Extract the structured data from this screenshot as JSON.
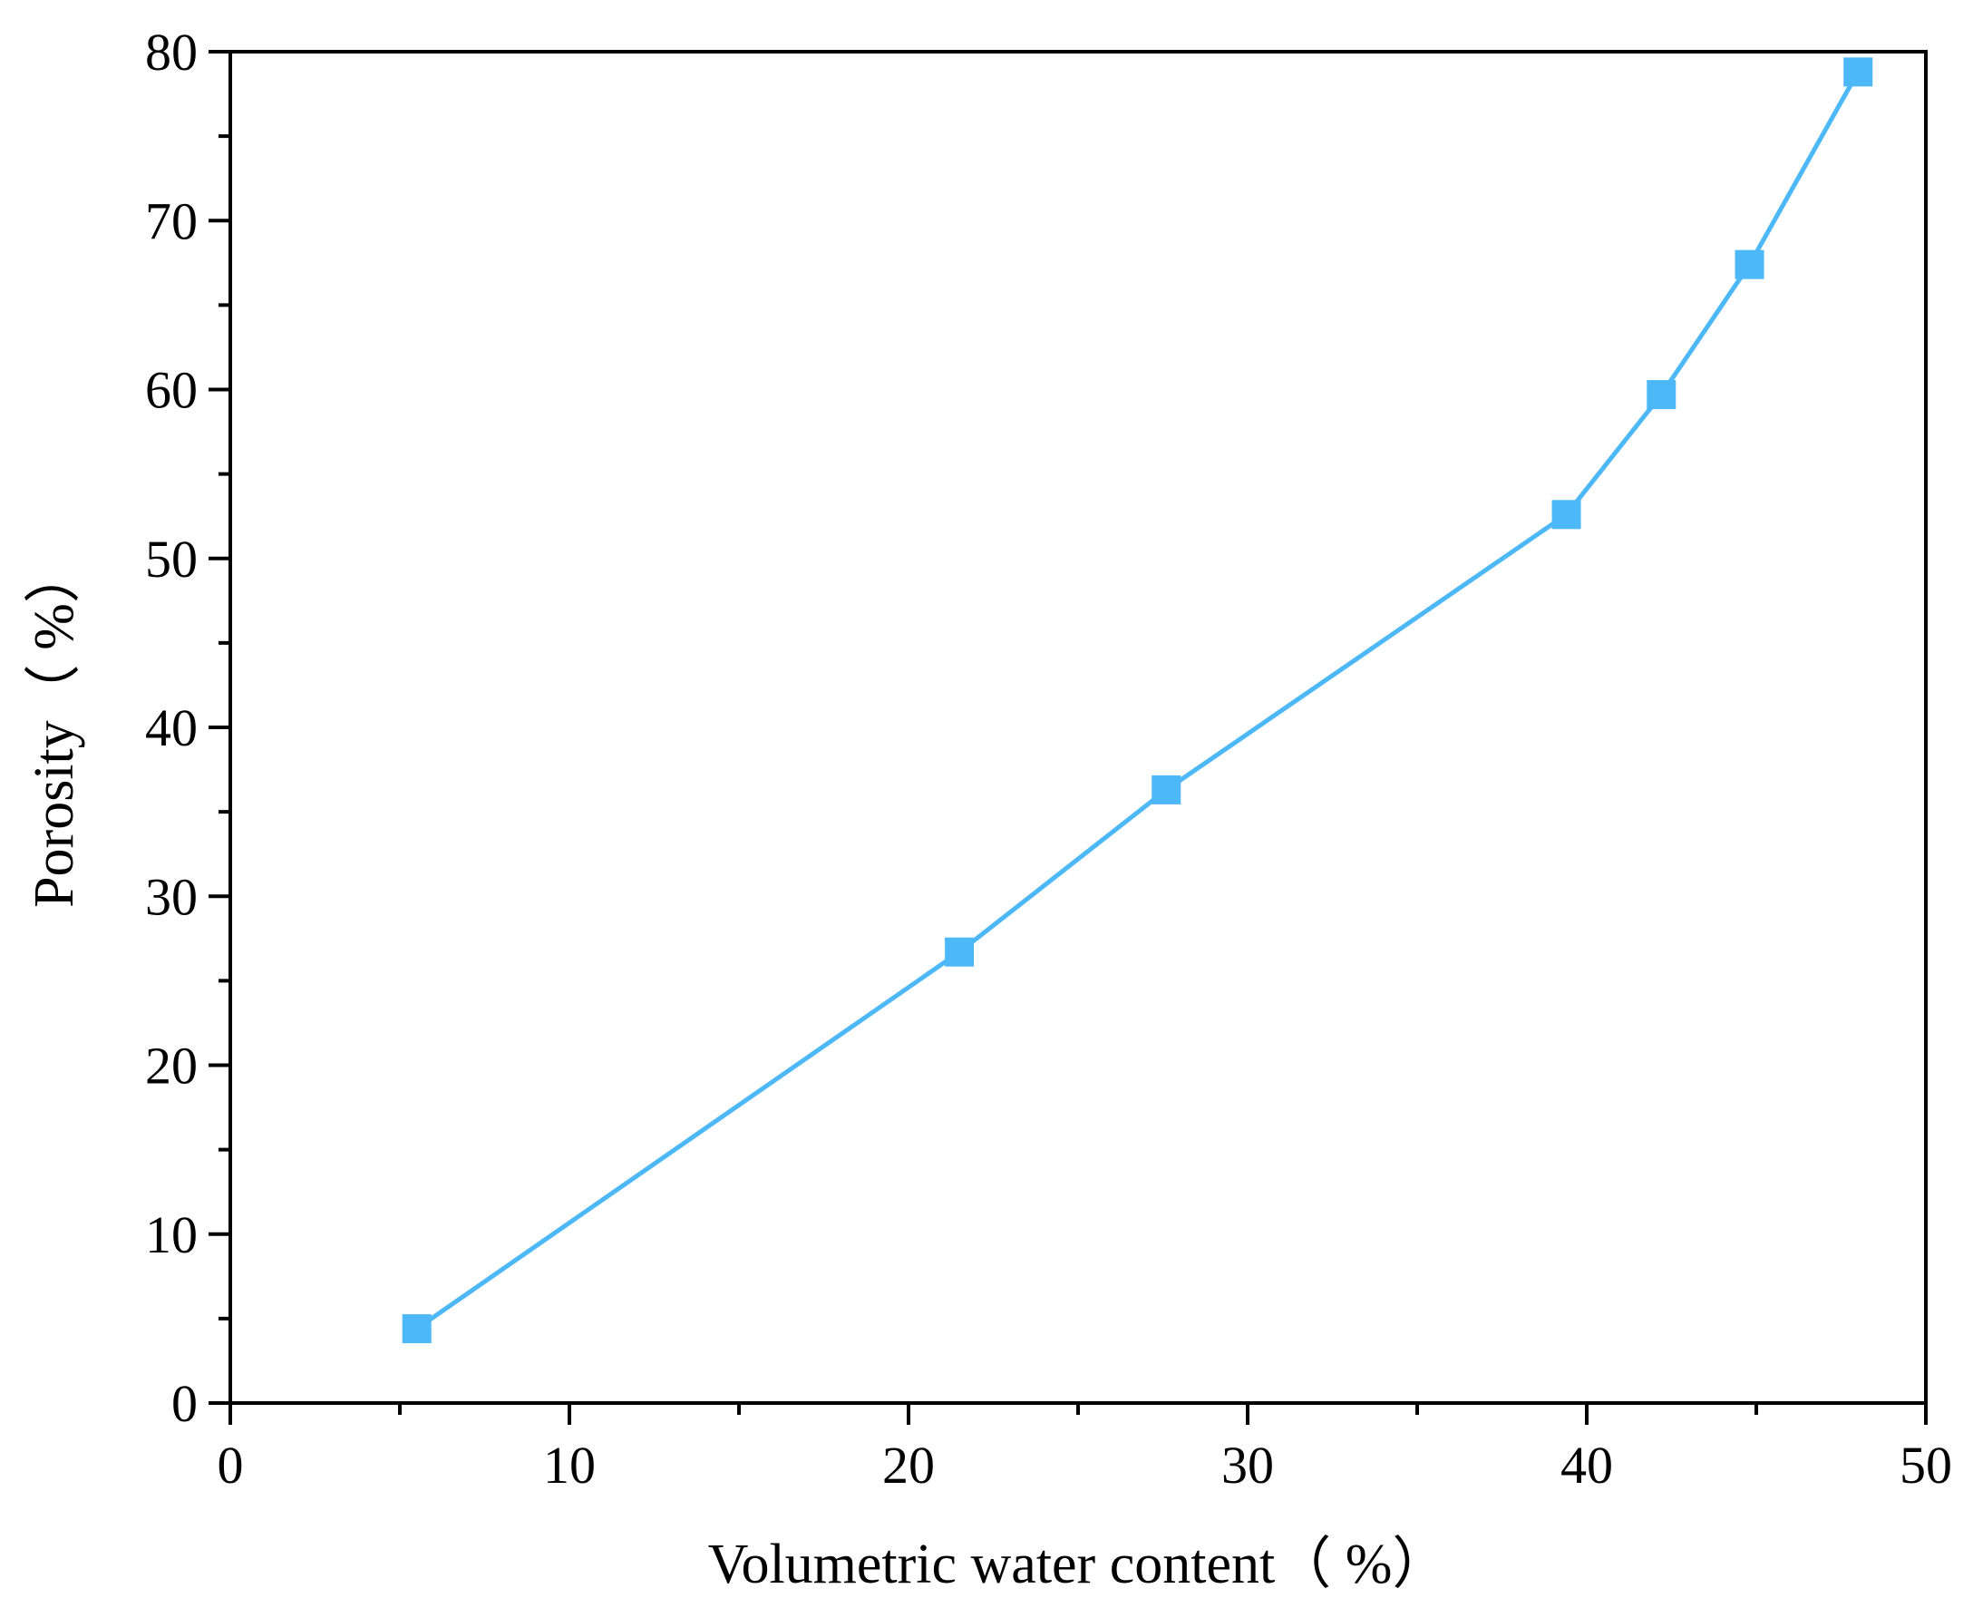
{
  "chart_data": {
    "type": "line",
    "title": "",
    "xlabel": "Volumetric water content（ %）",
    "ylabel": "Porosity（ %）",
    "xlim": [
      0,
      50
    ],
    "ylim": [
      0,
      80
    ],
    "x_ticks": [
      "0",
      "10",
      "20",
      "30",
      "40",
      "50"
    ],
    "y_ticks": [
      "0",
      "10",
      "20",
      "30",
      "40",
      "50",
      "60",
      "70",
      "80"
    ],
    "grid": false,
    "legend": "none",
    "series": [
      {
        "color": "#4db8f7",
        "marker": "square",
        "x": [
          5.5,
          21.5,
          27.6,
          39.4,
          42.2,
          44.8,
          48.0
        ],
        "y": [
          4.4,
          26.7,
          36.3,
          52.6,
          59.7,
          67.4,
          78.8
        ]
      }
    ]
  }
}
